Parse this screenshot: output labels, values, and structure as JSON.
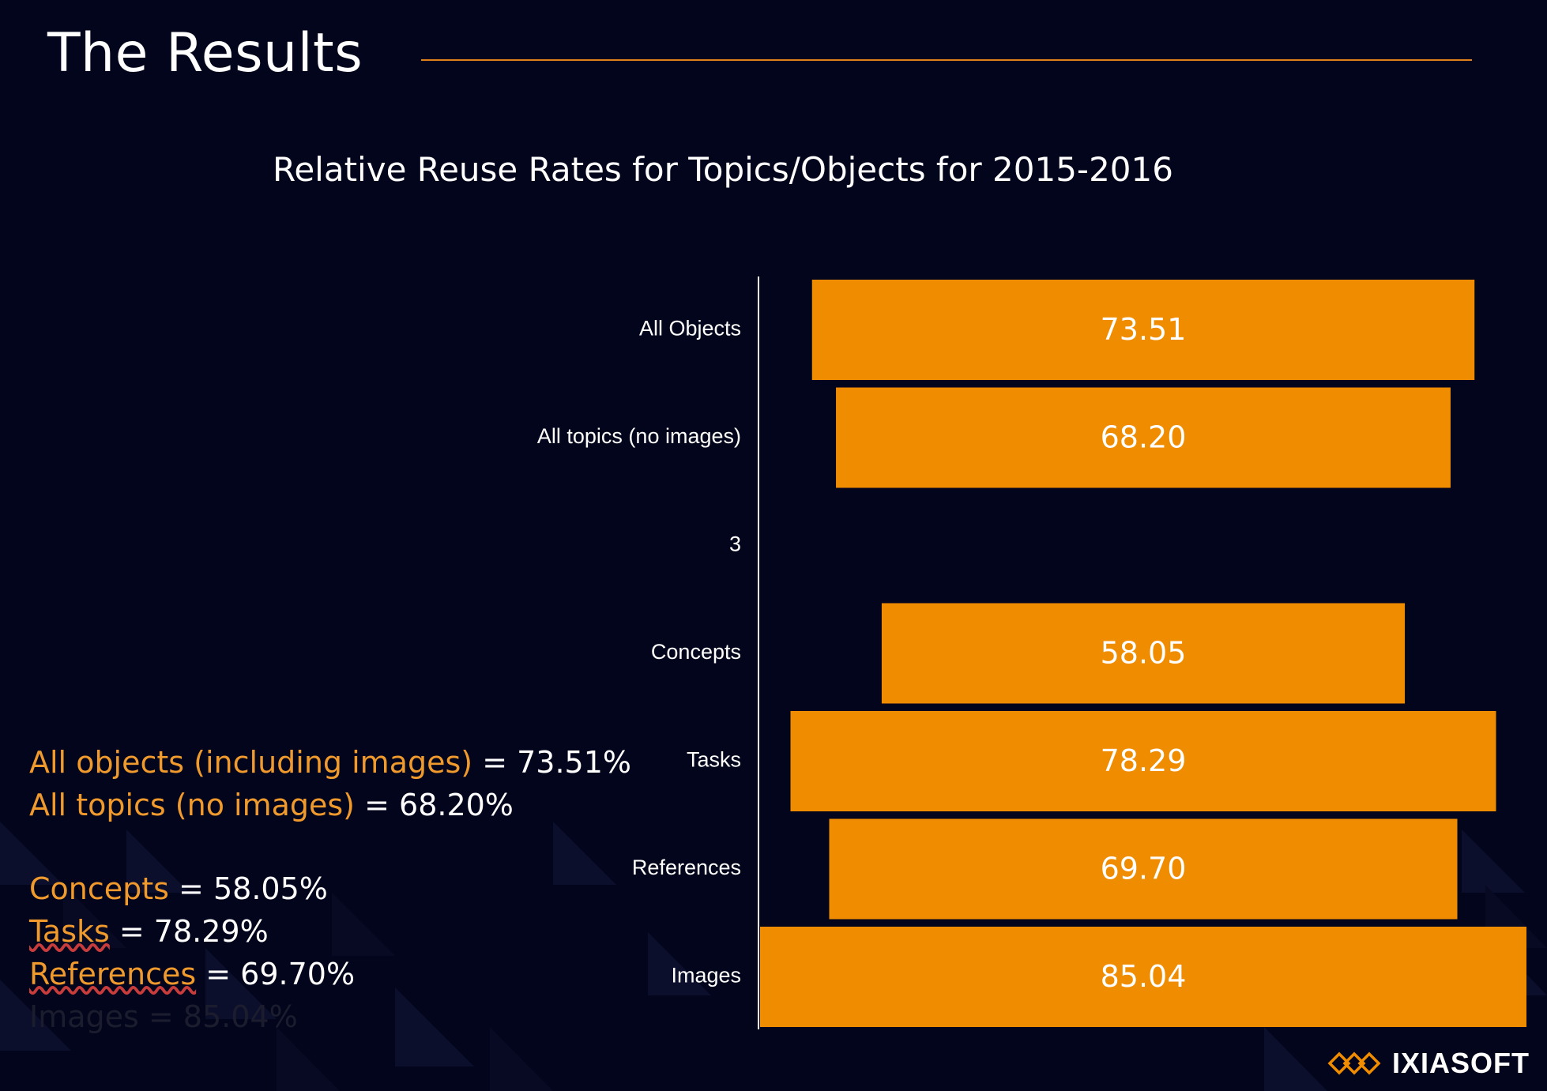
{
  "slide": {
    "title": "The Results",
    "brand": "IXIASOFT"
  },
  "chart_data": {
    "type": "bar",
    "orientation": "horizontal",
    "title": "Relative Reuse Rates for Topics/Objects for 2015-2016",
    "categories": [
      "All Objects",
      "All topics (no images)",
      "3",
      "Concepts",
      "Tasks",
      "References",
      "Images"
    ],
    "values": [
      73.51,
      68.2,
      null,
      58.05,
      78.29,
      69.7,
      85.04
    ],
    "value_labels": [
      "73.51",
      "68.20",
      "",
      "58.05",
      "78.29",
      "69.70",
      "85.04"
    ],
    "bar_color": "#f08c00",
    "label_color": "#ffffff",
    "bar_alignment": "centered",
    "xlabel": "",
    "ylabel": ""
  },
  "summary": [
    {
      "key": "All objects (including images)",
      "value": " = 73.51%",
      "underline": false,
      "faded": false
    },
    {
      "key": "All topics (no images)",
      "value": " = 68.20%",
      "underline": false,
      "faded": false
    },
    {
      "gap": true
    },
    {
      "key": "Concepts",
      "value": " = 58.05%",
      "underline": false,
      "faded": false
    },
    {
      "key": "Tasks",
      "value": " = 78.29%",
      "underline": true,
      "faded": false
    },
    {
      "key": "References",
      "value": " = 69.70%",
      "underline": true,
      "faded": false
    },
    {
      "key": "Images",
      "value": " = 85.04%",
      "underline": false,
      "faded": true
    }
  ],
  "colors": {
    "background": "#03051c",
    "accent": "#e0801a",
    "summary_key": "#f09a2d"
  }
}
